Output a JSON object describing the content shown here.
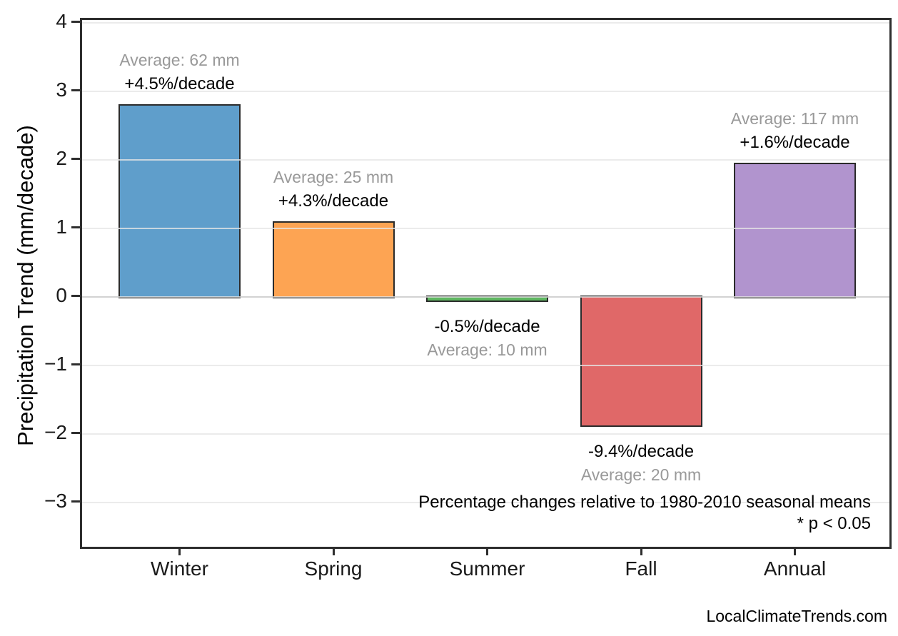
{
  "chart_data": {
    "type": "bar",
    "title": "",
    "ylabel": "Precipitation Trend (mm/decade)",
    "xlabel": "",
    "categories": [
      "Winter",
      "Spring",
      "Summer",
      "Fall",
      "Annual"
    ],
    "values": [
      2.79,
      1.08,
      -0.05,
      -1.88,
      1.93
    ],
    "bars": [
      {
        "category": "Winter",
        "value": 2.79,
        "average_label": "Average: 62 mm",
        "trend_label": "+4.5%/decade",
        "color": "#5f9ecb"
      },
      {
        "category": "Spring",
        "value": 1.08,
        "average_label": "Average: 25 mm",
        "trend_label": "+4.3%/decade",
        "color": "#fda453"
      },
      {
        "category": "Summer",
        "value": -0.05,
        "average_label": "Average: 10 mm",
        "trend_label": "-0.5%/decade",
        "color": "#5fb761"
      },
      {
        "category": "Fall",
        "value": -1.88,
        "average_label": "Average: 20 mm",
        "trend_label": "-9.4%/decade",
        "color": "#e06868"
      },
      {
        "category": "Annual",
        "value": 1.93,
        "average_label": "Average: 117 mm",
        "trend_label": "+1.6%/decade",
        "color": "#b194ce"
      }
    ],
    "ylim": [
      -3.65,
      4.04
    ],
    "y_ticks": [
      4,
      3,
      2,
      1,
      0,
      -1,
      -2,
      -3
    ],
    "grid": "horizontal-light",
    "legend": "none",
    "zero_line": true,
    "annotations": [
      "Percentage changes relative to 1980-2010 seasonal means",
      "* p < 0.05"
    ],
    "watermark": "LocalClimateTrends.com"
  },
  "colors": {
    "bar_edge": "#2b2b2b",
    "axis_spine": "#2e2e2e",
    "gridline": "rgba(230,230,230,0.78)",
    "zero_line": "#8c8c8c",
    "tick_text": "#1a1a1a",
    "average_text": "#999999",
    "trend_text": "#000000"
  }
}
